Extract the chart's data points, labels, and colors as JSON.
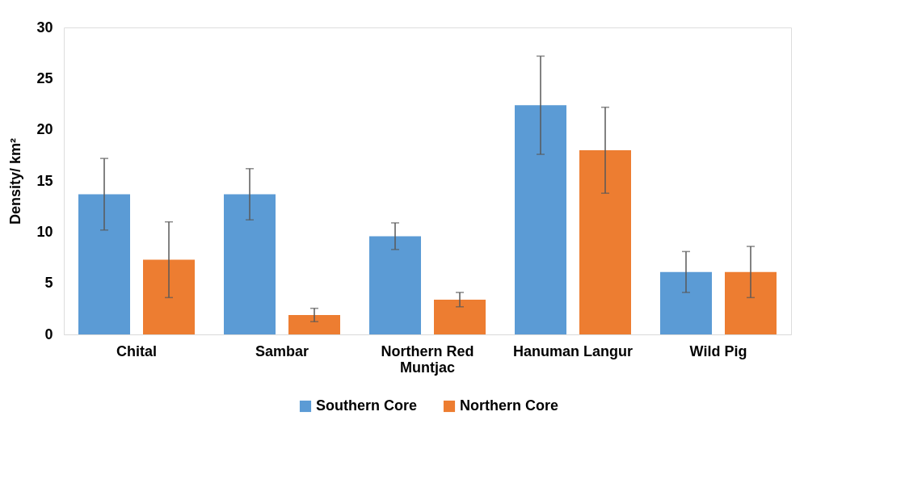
{
  "chart_data": {
    "type": "bar",
    "ylabel": "Density/ km²",
    "categories": [
      "Chital",
      "Sambar",
      "Northern Red Muntjac",
      "Hanuman Langur",
      "Wild Pig"
    ],
    "series": [
      {
        "name": "Southern Core",
        "color": "#5b9bd5",
        "values": [
          13.7,
          13.7,
          9.6,
          22.4,
          6.1
        ],
        "errors": [
          3.5,
          2.5,
          1.3,
          4.8,
          2.0
        ]
      },
      {
        "name": "Northern Core",
        "color": "#ed7d31",
        "values": [
          7.3,
          1.9,
          3.4,
          18.0,
          6.1
        ],
        "errors": [
          3.7,
          0.65,
          0.7,
          4.2,
          2.5
        ]
      }
    ],
    "ylim": [
      0,
      30
    ],
    "yticks": [
      0,
      5,
      10,
      15,
      20,
      25,
      30
    ],
    "grid": false,
    "legend": "bottom"
  }
}
